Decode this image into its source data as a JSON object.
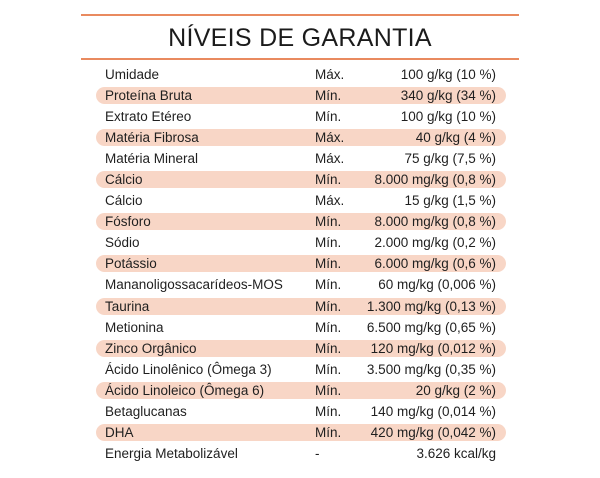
{
  "title": "NÍVEIS DE GARANTIA",
  "accent_color": "#e98a5f",
  "stripe_color": "#f8d6c6",
  "rows": [
    {
      "name": "Umidade",
      "type": "Máx.",
      "value": "100 g/kg (10 %)"
    },
    {
      "name": "Proteína Bruta",
      "type": "Mín.",
      "value": "340 g/kg (34 %)"
    },
    {
      "name": "Extrato Etéreo",
      "type": "Mín.",
      "value": "100 g/kg (10 %)"
    },
    {
      "name": "Matéria Fibrosa",
      "type": "Máx.",
      "value": "40 g/kg (4 %)"
    },
    {
      "name": "Matéria Mineral",
      "type": "Máx.",
      "value": "75 g/kg (7,5 %)"
    },
    {
      "name": "Cálcio",
      "type": "Mín.",
      "value": "8.000 mg/kg (0,8 %)"
    },
    {
      "name": "Cálcio",
      "type": "Máx.",
      "value": "15 g/kg (1,5 %)"
    },
    {
      "name": "Fósforo",
      "type": "Mín.",
      "value": "8.000 mg/kg (0,8 %)"
    },
    {
      "name": "Sódio",
      "type": "Mín.",
      "value": "2.000 mg/kg (0,2 %)"
    },
    {
      "name": "Potássio",
      "type": "Mín.",
      "value": "6.000 mg/kg (0,6 %)"
    },
    {
      "name": "Mananoligossacarídeos-MOS",
      "type": "Mín.",
      "value": "60 mg/kg (0,006 %)"
    },
    {
      "name": "Taurina",
      "type": "Mín.",
      "value": "1.300 mg/kg (0,13 %)"
    },
    {
      "name": "Metionina",
      "type": "Mín.",
      "value": "6.500 mg/kg (0,65 %)"
    },
    {
      "name": "Zinco Orgânico",
      "type": "Mín.",
      "value": "120 mg/kg (0,012 %)"
    },
    {
      "name": "Ácido Linolênico (Ômega 3)",
      "type": "Mín.",
      "value": "3.500 mg/kg (0,35 %)"
    },
    {
      "name": "Ácido Linoleico (Ômega 6)",
      "type": "Mín.",
      "value": "20 g/kg (2 %)"
    },
    {
      "name": "Betaglucanas",
      "type": "Mín.",
      "value": "140 mg/kg (0,014 %)"
    },
    {
      "name": "DHA",
      "type": "Mín.",
      "value": "420 mg/kg (0,042 %)"
    },
    {
      "name": "Energia Metabolizável",
      "type": "-",
      "value": "3.626 kcal/kg"
    }
  ]
}
